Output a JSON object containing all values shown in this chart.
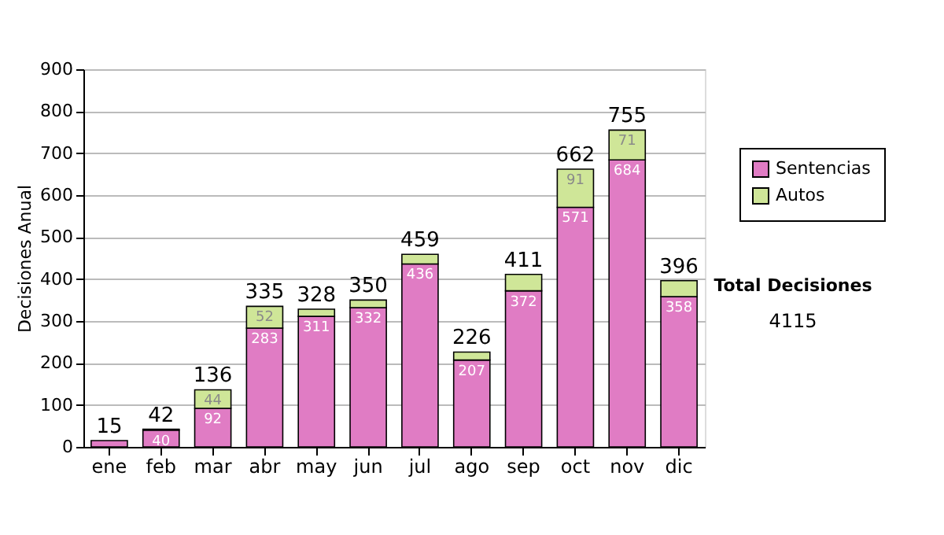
{
  "chart_data": {
    "type": "bar",
    "stacked": true,
    "ylabel": "Decisiones Anual",
    "categories": [
      "ene",
      "feb",
      "mar",
      "abr",
      "may",
      "jun",
      "jul",
      "ago",
      "sep",
      "oct",
      "nov",
      "dic"
    ],
    "series": [
      {
        "name": "Sentencias",
        "color": "#e07cc4",
        "values": [
          15,
          40,
          92,
          283,
          311,
          332,
          436,
          207,
          372,
          571,
          684,
          358
        ],
        "value_labels": [
          null,
          "40",
          "92",
          "283",
          "311",
          "332",
          "436",
          "207",
          "372",
          "571",
          "684",
          "358"
        ]
      },
      {
        "name": "Autos",
        "color": "#cfe698",
        "values": [
          0,
          2,
          44,
          52,
          17,
          18,
          23,
          19,
          39,
          91,
          71,
          38
        ],
        "value_labels": [
          null,
          null,
          "44",
          "52",
          null,
          null,
          null,
          null,
          null,
          "91",
          "71",
          null
        ]
      }
    ],
    "totals": [
      "15",
      "42",
      "136",
      "335",
      "328",
      "350",
      "459",
      "226",
      "411",
      "662",
      "755",
      "396"
    ],
    "ylim": [
      0,
      900
    ],
    "yticks": [
      0,
      100,
      200,
      300,
      400,
      500,
      600,
      700,
      800,
      900
    ],
    "grid": "y",
    "legend": "right",
    "annotations": [
      "Total Decisiones",
      "4115"
    ]
  }
}
